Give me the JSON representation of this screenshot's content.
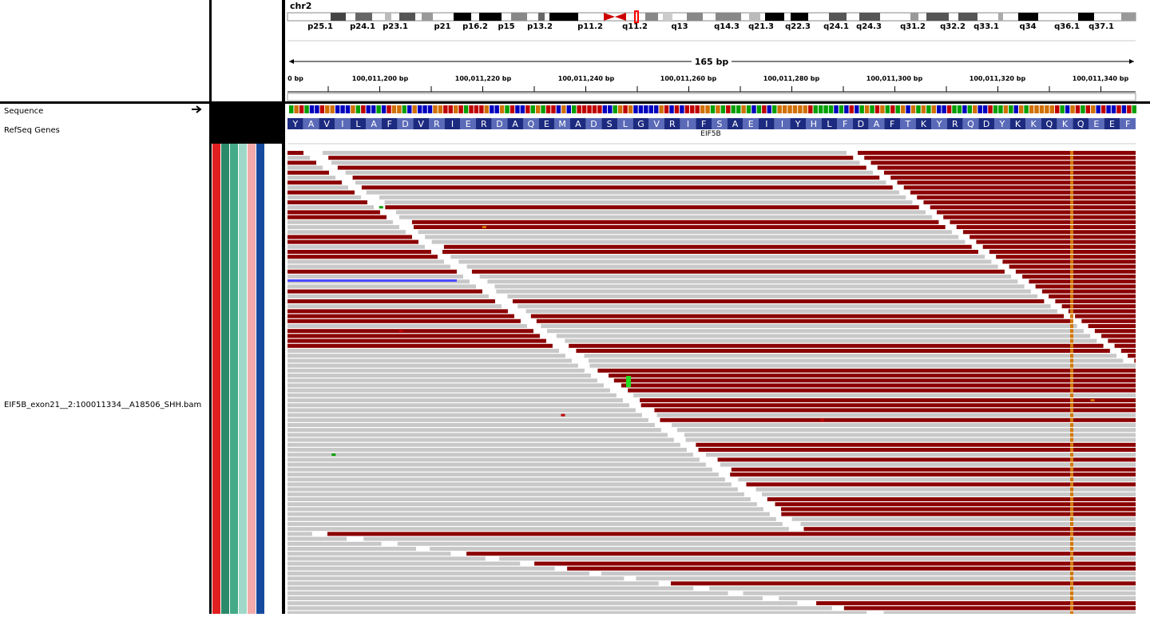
{
  "header": {
    "chromosome": "chr2",
    "cytobands": [
      "p25.1",
      "p24.1",
      "p23.1",
      "p21",
      "p16.2",
      "p15",
      "p13.2",
      "p11.2",
      "q11.2",
      "q13",
      "q14.3",
      "q21.3",
      "q22.3",
      "q24.1",
      "q24.3",
      "q31.2",
      "q32.2",
      "q33.1",
      "q34",
      "q36.1",
      "q37.1"
    ],
    "span": "165 bp",
    "ruler": [
      "0 bp",
      "100,011,200 bp",
      "100,011,220 bp",
      "100,011,240 bp",
      "100,011,260 bp",
      "100,011,280 bp",
      "100,011,300 bp",
      "100,011,320 bp",
      "100,011,340 bp"
    ]
  },
  "tracks": {
    "sequence": "Sequence",
    "genes": "RefSeq Genes",
    "bam": "EIF5B_exon21__2:100011334__A18506_SHH.bam"
  },
  "translation": [
    "Y",
    "A",
    "V",
    "I",
    "L",
    "A",
    "F",
    "D",
    "V",
    "R",
    "I",
    "E",
    "R",
    "D",
    "A",
    "Q",
    "E",
    "M",
    "A",
    "D",
    "S",
    "L",
    "G",
    "V",
    "R",
    "I",
    "F",
    "S",
    "A",
    "E",
    "I",
    "I",
    "Y",
    "H",
    "L",
    "F",
    "D",
    "A",
    "F",
    "T",
    "K",
    "Y",
    "R",
    "Q",
    "D",
    "Y",
    "K",
    "K",
    "Q",
    "K",
    "Q",
    "E",
    "E",
    "F"
  ],
  "gene": "EIF5B"
}
